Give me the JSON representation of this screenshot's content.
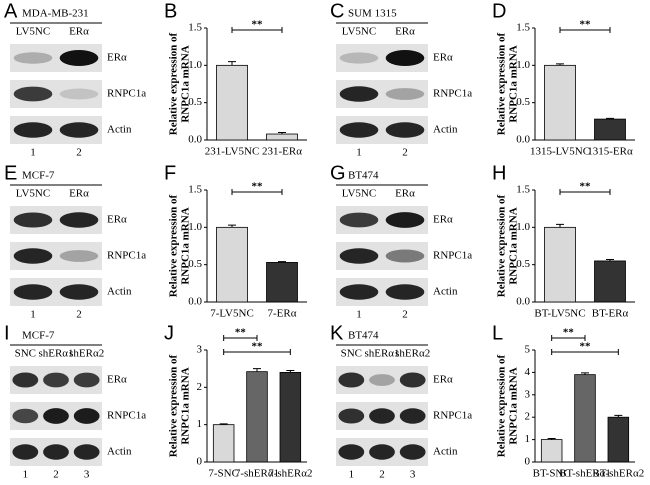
{
  "blots": [
    {
      "panel": "A",
      "title": "MDA-MB-231",
      "lanes": [
        "LV5NC",
        "ERα"
      ],
      "bands": [
        "ERα",
        "RNPC1a",
        "Actin"
      ],
      "lane_numbers": [
        "1",
        "2"
      ]
    },
    {
      "panel": "C",
      "title": "SUM 1315",
      "lanes": [
        "LV5NC",
        "ERα"
      ],
      "bands": [
        "ERα",
        "RNPC1a",
        "Actin"
      ],
      "lane_numbers": [
        "1",
        "2"
      ]
    },
    {
      "panel": "E",
      "title": "MCF-7",
      "lanes": [
        "LV5NC",
        "ERα"
      ],
      "bands": [
        "ERα",
        "RNPC1a",
        "Actin"
      ],
      "lane_numbers": [
        "1",
        "2"
      ]
    },
    {
      "panel": "G",
      "title": "BT474",
      "lanes": [
        "LV5NC",
        "ERα"
      ],
      "bands": [
        "ERα",
        "RNPC1a",
        "Actin"
      ],
      "lane_numbers": [
        "1",
        "2"
      ]
    },
    {
      "panel": "I",
      "title": "MCF-7",
      "lanes": [
        "SNC",
        "shERα1",
        "shERα2"
      ],
      "bands": [
        "ERα",
        "RNPC1a",
        "Actin"
      ],
      "lane_numbers": [
        "1",
        "2",
        "3"
      ]
    },
    {
      "panel": "K",
      "title": "BT474",
      "lanes": [
        "SNC",
        "shERα1",
        "shERα2"
      ],
      "bands": [
        "ERα",
        "RNPC1a",
        "Actin"
      ],
      "lane_numbers": [
        "1",
        "2",
        "3"
      ]
    }
  ],
  "chart_data": [
    {
      "type": "bar",
      "panel": "B",
      "y_label": [
        "Relative expression of",
        "RNPC1a mRNA"
      ],
      "categories": [
        "231-LV5NC",
        "231-ERα"
      ],
      "values": [
        1.0,
        0.08
      ],
      "errors": [
        0.05,
        0.02
      ],
      "colors": [
        "#d9d9d9",
        "#d9d9d9"
      ],
      "ylim": [
        0,
        1.5
      ],
      "yticks": [
        {
          "value": 0,
          "label": "0.0"
        },
        0.5,
        {
          "value": 1,
          "label": "1.0"
        },
        1.5
      ],
      "significance": [
        "**"
      ]
    },
    {
      "type": "bar",
      "panel": "D",
      "y_label": [
        "Relative expression of",
        "RNPC1a mRNA"
      ],
      "categories": [
        "1315-LV5NC",
        "1315-ERα"
      ],
      "values": [
        1.0,
        0.28
      ],
      "errors": [
        0.02,
        0.01
      ],
      "colors": [
        "#d9d9d9",
        "#333333"
      ],
      "ylim": [
        0,
        1.5
      ],
      "yticks": [
        {
          "value": 0,
          "label": "0.0"
        },
        0.5,
        {
          "value": 1,
          "label": "1.0"
        },
        1.5
      ],
      "significance": [
        "**"
      ]
    },
    {
      "type": "bar",
      "panel": "F",
      "y_label": [
        "Relative expression of",
        "RNPC1a mRNA"
      ],
      "categories": [
        "7-LV5NC",
        "7-ERα"
      ],
      "values": [
        1.0,
        0.53
      ],
      "errors": [
        0.03,
        0.01
      ],
      "colors": [
        "#d9d9d9",
        "#333333"
      ],
      "ylim": [
        0,
        1.5
      ],
      "yticks": [
        {
          "value": 0,
          "label": "0.0"
        },
        0.5,
        {
          "value": 1,
          "label": "1.0"
        },
        1.5
      ],
      "significance": [
        "**"
      ]
    },
    {
      "type": "bar",
      "panel": "H",
      "y_label": [
        "Relative expression of",
        "RNPC1a mRNA"
      ],
      "categories": [
        "BT-LV5NC",
        "BT-ERα"
      ],
      "values": [
        1.0,
        0.55
      ],
      "errors": [
        0.04,
        0.02
      ],
      "colors": [
        "#d9d9d9",
        "#333333"
      ],
      "ylim": [
        0,
        1.5
      ],
      "yticks": [
        {
          "value": 0,
          "label": "0.0"
        },
        0.5,
        {
          "value": 1,
          "label": "1.0"
        },
        1.5
      ],
      "significance": [
        "**"
      ]
    },
    {
      "type": "bar",
      "panel": "J",
      "y_label": [
        "Relative expression of",
        "RNPC1a mRNA"
      ],
      "categories": [
        "7-SNC",
        "7-shERα1",
        "7-shERα2"
      ],
      "values": [
        1.0,
        2.42,
        2.4
      ],
      "errors": [
        0.02,
        0.08,
        0.05
      ],
      "colors": [
        "#d9d9d9",
        "#666666",
        "#333333"
      ],
      "ylim": [
        0,
        3
      ],
      "yticks": [
        0,
        1,
        2,
        3
      ],
      "significance": [
        "**",
        "**"
      ]
    },
    {
      "type": "bar",
      "panel": "L",
      "y_label": [
        "Relative expression of",
        "RNPC1a mRNA"
      ],
      "categories": [
        "BT-SNC",
        "BT-shERα1",
        "BT-shERα2"
      ],
      "values": [
        1.0,
        3.9,
        2.0
      ],
      "errors": [
        0.05,
        0.08,
        0.08
      ],
      "colors": [
        "#d9d9d9",
        "#666666",
        "#333333"
      ],
      "ylim": [
        0,
        5
      ],
      "yticks": [
        0,
        1,
        2,
        3,
        4,
        5
      ],
      "significance": [
        "**",
        "**"
      ]
    }
  ]
}
